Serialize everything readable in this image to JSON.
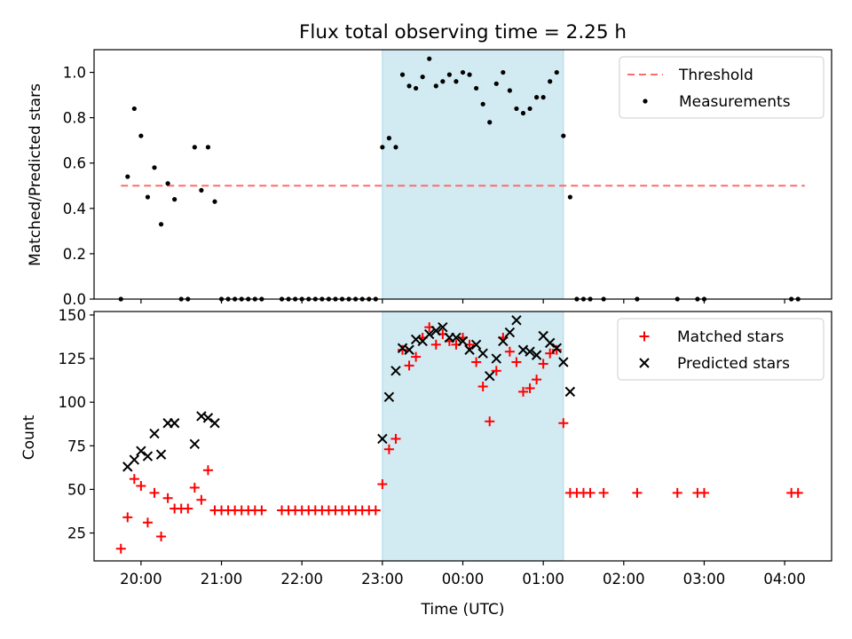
{
  "title": "Flux total observing time = 2.25 h",
  "colors": {
    "threshold": "#ff6b6b",
    "measurements": "#000000",
    "matched": "#ff0000",
    "predicted": "#000000",
    "shade": "#add8e6"
  },
  "chart_data": [
    {
      "type": "scatter",
      "ylabel": "Matched/Predicted stars",
      "ylim": [
        0,
        1.1
      ],
      "yticks": [
        0.0,
        0.2,
        0.4,
        0.6,
        0.8,
        1.0
      ],
      "ytick_labels": [
        "0.0",
        "0.2",
        "0.4",
        "0.6",
        "0.8",
        "1.0"
      ],
      "legend_position": "top-right",
      "highlight_span": [
        "23:00",
        "01:15"
      ],
      "threshold": {
        "name": "Threshold",
        "y": 0.5,
        "x_range": [
          "19:45",
          "04:15"
        ]
      },
      "series": [
        {
          "name": "Measurements",
          "points": [
            [
              "19:45",
              0.0
            ],
            [
              "19:50",
              0.54
            ],
            [
              "19:55",
              0.84
            ],
            [
              "20:00",
              0.72
            ],
            [
              "20:05",
              0.45
            ],
            [
              "20:10",
              0.58
            ],
            [
              "20:15",
              0.33
            ],
            [
              "20:20",
              0.51
            ],
            [
              "20:25",
              0.44
            ],
            [
              "20:30",
              0.0
            ],
            [
              "20:35",
              0.0
            ],
            [
              "20:40",
              0.67
            ],
            [
              "20:45",
              0.48
            ],
            [
              "20:50",
              0.67
            ],
            [
              "20:55",
              0.43
            ],
            [
              "21:00",
              0.0
            ],
            [
              "21:05",
              0.0
            ],
            [
              "21:10",
              0.0
            ],
            [
              "21:15",
              0.0
            ],
            [
              "21:20",
              0.0
            ],
            [
              "21:25",
              0.0
            ],
            [
              "21:30",
              0.0
            ],
            [
              "21:45",
              0.0
            ],
            [
              "21:50",
              0.0
            ],
            [
              "21:55",
              0.0
            ],
            [
              "22:00",
              0.0
            ],
            [
              "22:05",
              0.0
            ],
            [
              "22:10",
              0.0
            ],
            [
              "22:15",
              0.0
            ],
            [
              "22:20",
              0.0
            ],
            [
              "22:25",
              0.0
            ],
            [
              "22:30",
              0.0
            ],
            [
              "22:35",
              0.0
            ],
            [
              "22:40",
              0.0
            ],
            [
              "22:45",
              0.0
            ],
            [
              "22:50",
              0.0
            ],
            [
              "22:55",
              0.0
            ],
            [
              "23:00",
              0.67
            ],
            [
              "23:05",
              0.71
            ],
            [
              "23:10",
              0.67
            ],
            [
              "23:15",
              0.99
            ],
            [
              "23:20",
              0.94
            ],
            [
              "23:25",
              0.93
            ],
            [
              "23:30",
              0.98
            ],
            [
              "23:35",
              1.06
            ],
            [
              "23:40",
              0.94
            ],
            [
              "23:45",
              0.96
            ],
            [
              "23:50",
              0.99
            ],
            [
              "23:55",
              0.96
            ],
            [
              "00:00",
              1.0
            ],
            [
              "00:05",
              0.99
            ],
            [
              "00:10",
              0.93
            ],
            [
              "00:15",
              0.86
            ],
            [
              "00:20",
              0.78
            ],
            [
              "00:25",
              0.95
            ],
            [
              "00:30",
              1.0
            ],
            [
              "00:35",
              0.92
            ],
            [
              "00:40",
              0.84
            ],
            [
              "00:45",
              0.82
            ],
            [
              "00:50",
              0.84
            ],
            [
              "00:55",
              0.89
            ],
            [
              "01:00",
              0.89
            ],
            [
              "01:05",
              0.96
            ],
            [
              "01:10",
              1.0
            ],
            [
              "01:15",
              0.72
            ],
            [
              "01:20",
              0.45
            ],
            [
              "01:25",
              0.0
            ],
            [
              "01:30",
              0.0
            ],
            [
              "01:35",
              0.0
            ],
            [
              "01:45",
              0.0
            ],
            [
              "02:10",
              0.0
            ],
            [
              "02:40",
              0.0
            ],
            [
              "02:55",
              0.0
            ],
            [
              "03:00",
              0.0
            ],
            [
              "04:05",
              0.0
            ],
            [
              "04:10",
              0.0
            ]
          ]
        }
      ]
    },
    {
      "type": "scatter",
      "xlabel": "Time (UTC)",
      "ylabel": "Count",
      "ylim": [
        9,
        152
      ],
      "yticks": [
        25,
        50,
        75,
        100,
        125,
        150
      ],
      "ytick_labels": [
        "25",
        "50",
        "75",
        "100",
        "125",
        "150"
      ],
      "xlim": [
        "19:25",
        "04:35"
      ],
      "xticks": [
        "20:00",
        "21:00",
        "22:00",
        "23:00",
        "00:00",
        "01:00",
        "02:00",
        "03:00",
        "04:00"
      ],
      "legend_position": "top-right",
      "highlight_span": [
        "23:00",
        "01:15"
      ],
      "series": [
        {
          "name": "Matched stars",
          "marker": "plus",
          "points": [
            [
              "19:45",
              16
            ],
            [
              "19:50",
              34
            ],
            [
              "19:55",
              56
            ],
            [
              "20:00",
              52
            ],
            [
              "20:05",
              31
            ],
            [
              "20:10",
              48
            ],
            [
              "20:15",
              23
            ],
            [
              "20:20",
              45
            ],
            [
              "20:25",
              39
            ],
            [
              "20:30",
              39
            ],
            [
              "20:35",
              39
            ],
            [
              "20:40",
              51
            ],
            [
              "20:45",
              44
            ],
            [
              "20:50",
              61
            ],
            [
              "20:55",
              38
            ],
            [
              "21:00",
              38
            ],
            [
              "21:05",
              38
            ],
            [
              "21:10",
              38
            ],
            [
              "21:15",
              38
            ],
            [
              "21:20",
              38
            ],
            [
              "21:25",
              38
            ],
            [
              "21:30",
              38
            ],
            [
              "21:45",
              38
            ],
            [
              "21:50",
              38
            ],
            [
              "21:55",
              38
            ],
            [
              "22:00",
              38
            ],
            [
              "22:05",
              38
            ],
            [
              "22:10",
              38
            ],
            [
              "22:15",
              38
            ],
            [
              "22:20",
              38
            ],
            [
              "22:25",
              38
            ],
            [
              "22:30",
              38
            ],
            [
              "22:35",
              38
            ],
            [
              "22:40",
              38
            ],
            [
              "22:45",
              38
            ],
            [
              "22:50",
              38
            ],
            [
              "22:55",
              38
            ],
            [
              "23:00",
              53
            ],
            [
              "23:05",
              73
            ],
            [
              "23:10",
              79
            ],
            [
              "23:15",
              130
            ],
            [
              "23:20",
              121
            ],
            [
              "23:25",
              126
            ],
            [
              "23:30",
              137
            ],
            [
              "23:35",
              143
            ],
            [
              "23:40",
              133
            ],
            [
              "23:45",
              139
            ],
            [
              "23:50",
              135
            ],
            [
              "23:55",
              133
            ],
            [
              "00:00",
              137
            ],
            [
              "00:05",
              133
            ],
            [
              "00:10",
              123
            ],
            [
              "00:15",
              109
            ],
            [
              "00:20",
              89
            ],
            [
              "00:25",
              118
            ],
            [
              "00:30",
              137
            ],
            [
              "00:35",
              129
            ],
            [
              "00:40",
              123
            ],
            [
              "00:45",
              106
            ],
            [
              "00:50",
              108
            ],
            [
              "00:55",
              113
            ],
            [
              "01:00",
              122
            ],
            [
              "01:05",
              128
            ],
            [
              "01:10",
              130
            ],
            [
              "01:15",
              88
            ],
            [
              "01:20",
              48
            ],
            [
              "01:25",
              48
            ],
            [
              "01:30",
              48
            ],
            [
              "01:35",
              48
            ],
            [
              "01:45",
              48
            ],
            [
              "02:10",
              48
            ],
            [
              "02:40",
              48
            ],
            [
              "02:55",
              48
            ],
            [
              "03:00",
              48
            ],
            [
              "04:05",
              48
            ],
            [
              "04:10",
              48
            ]
          ]
        },
        {
          "name": "Predicted stars",
          "marker": "x",
          "points": [
            [
              "19:50",
              63
            ],
            [
              "19:55",
              67
            ],
            [
              "20:00",
              72
            ],
            [
              "20:05",
              69
            ],
            [
              "20:10",
              82
            ],
            [
              "20:15",
              70
            ],
            [
              "20:20",
              88
            ],
            [
              "20:25",
              88
            ],
            [
              "20:40",
              76
            ],
            [
              "20:45",
              92
            ],
            [
              "20:50",
              91
            ],
            [
              "20:55",
              88
            ],
            [
              "23:00",
              79
            ],
            [
              "23:05",
              103
            ],
            [
              "23:10",
              118
            ],
            [
              "23:15",
              131
            ],
            [
              "23:20",
              130
            ],
            [
              "23:25",
              136
            ],
            [
              "23:30",
              135
            ],
            [
              "23:35",
              139
            ],
            [
              "23:40",
              141
            ],
            [
              "23:45",
              143
            ],
            [
              "23:50",
              137
            ],
            [
              "23:55",
              137
            ],
            [
              "00:00",
              135
            ],
            [
              "00:05",
              130
            ],
            [
              "00:10",
              133
            ],
            [
              "00:15",
              128
            ],
            [
              "00:20",
              115
            ],
            [
              "00:25",
              125
            ],
            [
              "00:30",
              135
            ],
            [
              "00:35",
              140
            ],
            [
              "00:40",
              147
            ],
            [
              "00:45",
              130
            ],
            [
              "00:50",
              129
            ],
            [
              "00:55",
              127
            ],
            [
              "01:00",
              138
            ],
            [
              "01:05",
              134
            ],
            [
              "01:10",
              131
            ],
            [
              "01:15",
              123
            ],
            [
              "01:20",
              106
            ]
          ]
        }
      ]
    }
  ]
}
